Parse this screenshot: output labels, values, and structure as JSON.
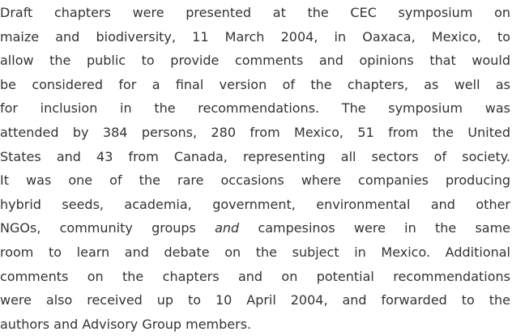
{
  "paragraph": {
    "lines": [
      [
        {
          "text": "Draft chapters were presented at the CEC symposium on"
        }
      ],
      [
        {
          "text": "maize and biodiversity, 11 March 2004, in Oaxaca, Mexico, to"
        }
      ],
      [
        {
          "text": "allow the public to provide comments and opinions that would"
        }
      ],
      [
        {
          "text": "be considered for a final version of the chapters, as well as"
        }
      ],
      [
        {
          "text": "for inclusion in the recommendations. The symposium was"
        }
      ],
      [
        {
          "text": "attended by 384 persons, 280 from Mexico, 51 from the United"
        }
      ],
      [
        {
          "text": "States and 43 from Canada, representing all sectors of society."
        }
      ],
      [
        {
          "text": "It was one of the rare occasions where companies producing"
        }
      ],
      [
        {
          "text": "hybrid seeds, academia, government, environmental and other"
        }
      ],
      [
        {
          "text": "NGOs, community groups "
        },
        {
          "text": "and",
          "italic": true
        },
        {
          "text": " campesinos were in the same"
        }
      ],
      [
        {
          "text": "room to learn and debate on the subject in Mexico. Additional"
        }
      ],
      [
        {
          "text": "comments on the chapters and on potential recommendations"
        }
      ],
      [
        {
          "text": "were also received up to 10 April 2004, and forwarded to the"
        }
      ],
      [
        {
          "text": "authors and Advisory Group members."
        }
      ]
    ]
  }
}
